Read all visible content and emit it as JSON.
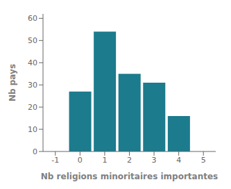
{
  "chart_data": {
    "type": "bar",
    "x": [
      0,
      1,
      2,
      3,
      4
    ],
    "values": [
      27,
      54,
      35,
      31,
      16
    ],
    "color": "#1c7b8c",
    "xlim": [
      -1.5,
      5.5
    ],
    "xticks": [
      -1,
      0,
      1,
      2,
      3,
      4,
      5
    ],
    "ylim": [
      0,
      62
    ],
    "yticks": [
      0,
      10,
      20,
      30,
      40,
      50,
      60
    ],
    "xlabel": "Nb religions minoritaires importantes",
    "ylabel": "Nb pays",
    "grid": false
  }
}
